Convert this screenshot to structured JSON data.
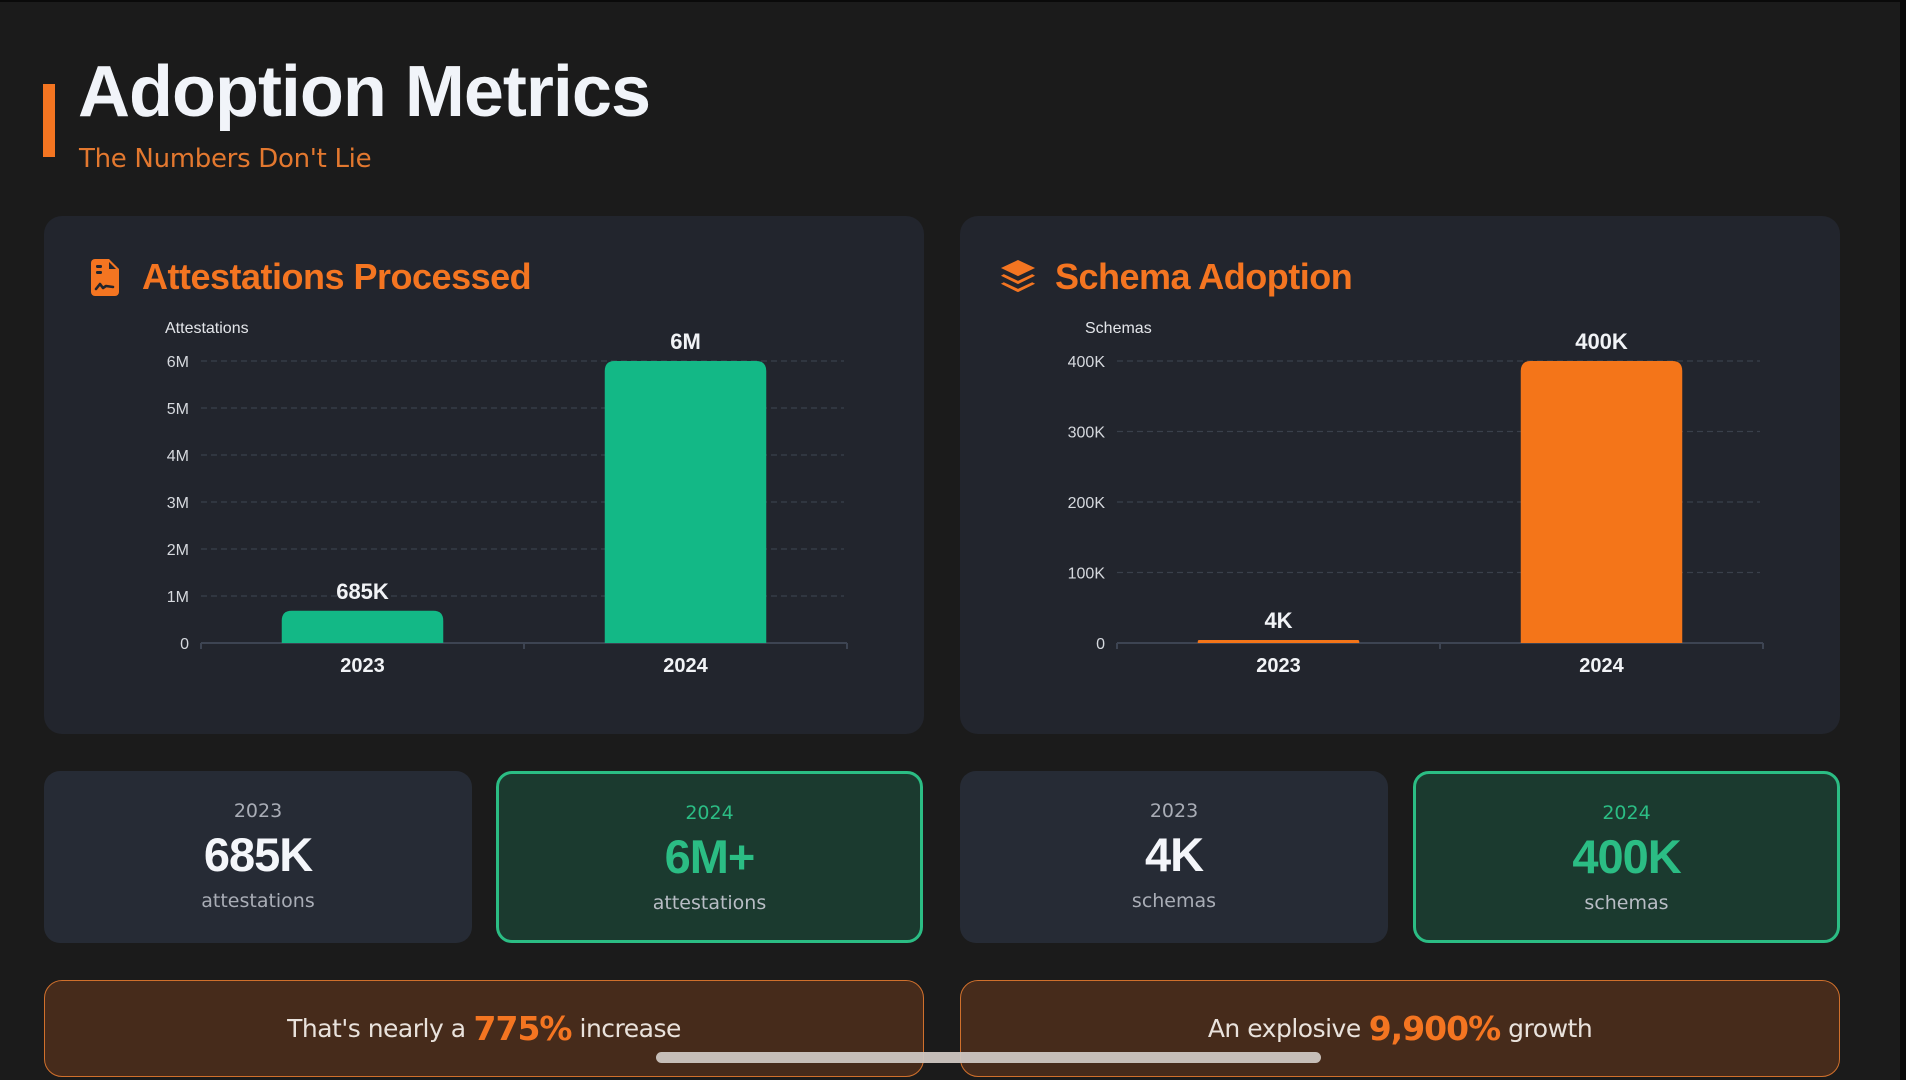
{
  "header": {
    "title": "Adoption Metrics",
    "subtitle": "The Numbers Don't Lie"
  },
  "colors": {
    "accent": "#f47521",
    "green": "#13b886",
    "green_border": "#2bbd84",
    "background": "#1b1b1b",
    "card": "#22252d"
  },
  "cards": [
    {
      "title": "Attestations Processed",
      "icon": "file-contract-icon"
    },
    {
      "title": "Schema Adoption",
      "icon": "layers-icon"
    }
  ],
  "chart_data": [
    {
      "type": "bar",
      "title": "Attestations Processed",
      "ylabel": "Attestations",
      "xlabel": "",
      "categories": [
        "2023",
        "2024"
      ],
      "values": [
        685000,
        6000000
      ],
      "value_labels": [
        "685K",
        "6M"
      ],
      "ylim": [
        0,
        6000000
      ],
      "yticks": [
        0,
        1000000,
        2000000,
        3000000,
        4000000,
        5000000,
        6000000
      ],
      "ytick_labels": [
        "0",
        "1M",
        "2M",
        "3M",
        "4M",
        "5M",
        "6M"
      ],
      "grid": true,
      "legend": "none",
      "bar_color": "#13b886"
    },
    {
      "type": "bar",
      "title": "Schema Adoption",
      "ylabel": "Schemas",
      "xlabel": "",
      "categories": [
        "2023",
        "2024"
      ],
      "values": [
        4000,
        400000
      ],
      "value_labels": [
        "4K",
        "400K"
      ],
      "ylim": [
        0,
        400000
      ],
      "yticks": [
        0,
        100000,
        200000,
        300000,
        400000
      ],
      "ytick_labels": [
        "0",
        "100K",
        "200K",
        "300K",
        "400K"
      ],
      "grid": true,
      "legend": "none",
      "bar_color": "#f47519"
    }
  ],
  "stats": [
    {
      "year": "2023",
      "value": "685K",
      "unit": "attestations",
      "highlight": false
    },
    {
      "year": "2024",
      "value": "6M+",
      "unit": "attestations",
      "highlight": true
    },
    {
      "year": "2023",
      "value": "4K",
      "unit": "schemas",
      "highlight": false
    },
    {
      "year": "2024",
      "value": "400K",
      "unit": "schemas",
      "highlight": true
    }
  ],
  "banners": [
    {
      "before": "That's nearly a",
      "highlight": "775%",
      "after": "increase"
    },
    {
      "before": "An explosive",
      "highlight": "9,900%",
      "after": "growth"
    }
  ]
}
